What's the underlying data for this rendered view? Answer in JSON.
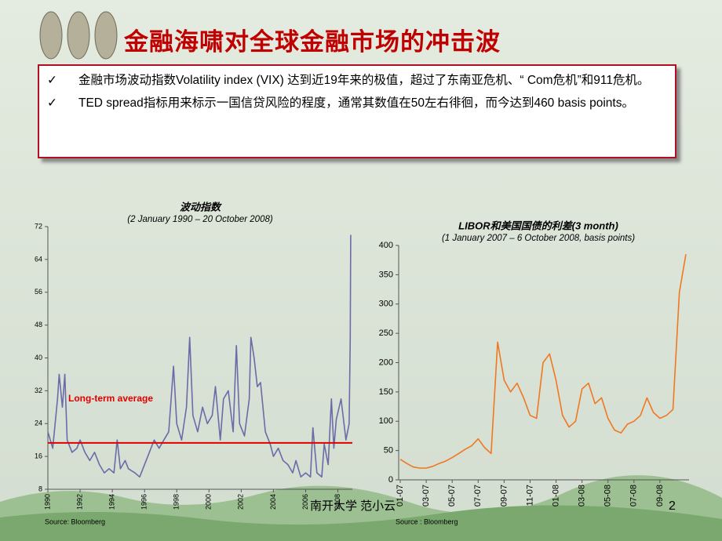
{
  "slide": {
    "title": "金融海啸对全球金融市场的冲击波",
    "bullets": [
      "金融市场波动指数Volatility index (VIX) 达到近19年来的极值，超过了东南亚危机、“ Com危机”和911危机。",
      "TED spread指标用来标示一国信贷风险的程度，通常其数值在50左右徘徊，而今达到460 basis points。"
    ],
    "footer": "南开大学 范小云",
    "page_number": "2"
  },
  "chart_data": [
    {
      "type": "line",
      "title": "波动指数",
      "subtitle": "(2 January 1990  – 20 October 2008)",
      "x": [
        1990.0,
        1990.3,
        1990.6,
        1990.7,
        1990.9,
        1991.05,
        1991.2,
        1991.5,
        1991.8,
        1992.0,
        1992.3,
        1992.6,
        1992.9,
        1993.2,
        1993.5,
        1993.8,
        1994.1,
        1994.3,
        1994.5,
        1994.8,
        1995.0,
        1995.4,
        1995.7,
        1996.0,
        1996.3,
        1996.6,
        1996.9,
        1997.2,
        1997.5,
        1997.8,
        1998.0,
        1998.3,
        1998.6,
        1998.8,
        1999.0,
        1999.3,
        1999.6,
        1999.9,
        2000.2,
        2000.4,
        2000.7,
        2000.9,
        2001.2,
        2001.5,
        2001.7,
        2001.9,
        2002.2,
        2002.5,
        2002.6,
        2002.8,
        2003.0,
        2003.2,
        2003.5,
        2003.8,
        2004.0,
        2004.3,
        2004.6,
        2004.9,
        2005.2,
        2005.4,
        2005.7,
        2006.0,
        2006.3,
        2006.45,
        2006.7,
        2007.0,
        2007.15,
        2007.4,
        2007.6,
        2007.75,
        2007.9,
        2008.2,
        2008.5,
        2008.7,
        2008.77,
        2008.8
      ],
      "values": [
        22,
        18,
        30,
        36,
        28,
        36,
        20,
        17,
        18,
        20,
        17,
        15,
        17,
        14,
        12,
        13,
        12,
        20,
        13,
        15,
        13,
        12,
        11,
        14,
        17,
        20,
        18,
        20,
        22,
        38,
        24,
        20,
        28,
        45,
        26,
        22,
        28,
        24,
        26,
        33,
        20,
        30,
        32,
        22,
        43,
        24,
        21,
        30,
        45,
        40,
        33,
        34,
        22,
        19,
        16,
        18,
        15,
        14,
        12,
        15,
        11,
        12,
        11,
        23,
        12,
        11,
        19,
        14,
        30,
        18,
        25,
        30,
        20,
        24,
        45,
        70
      ],
      "color": "#6b6ba8",
      "xlim": [
        1990,
        2008.9
      ],
      "xticks": [
        1990,
        1992,
        1994,
        1996,
        1998,
        2000,
        2002,
        2004,
        2006,
        2008
      ],
      "ylim": [
        8,
        72
      ],
      "yticks": [
        8,
        16,
        24,
        32,
        40,
        48,
        56,
        64,
        72
      ],
      "reference_line": {
        "value": 19.3,
        "label": "Long-term average",
        "color": "#e00000"
      },
      "source": "Source: Bloomberg"
    },
    {
      "type": "line",
      "title": "LIBOR和美国国债的利差(3 month)",
      "subtitle": "(1 January 2007  – 6 October 2008, basis points)",
      "categories": [
        "01-07",
        null,
        null,
        null,
        "03-07",
        null,
        null,
        null,
        "05-07",
        null,
        null,
        null,
        "07-07",
        null,
        null,
        null,
        "09-07",
        null,
        null,
        null,
        "11-07",
        null,
        null,
        null,
        "01-08",
        null,
        null,
        null,
        "03-08",
        null,
        null,
        null,
        "05-08",
        null,
        null,
        null,
        "07-08",
        null,
        null,
        null,
        "09-08",
        null,
        null,
        null,
        null
      ],
      "values": [
        35,
        28,
        22,
        20,
        20,
        23,
        28,
        32,
        38,
        45,
        52,
        58,
        70,
        55,
        45,
        235,
        170,
        150,
        165,
        140,
        110,
        105,
        200,
        215,
        170,
        110,
        90,
        100,
        155,
        165,
        130,
        140,
        105,
        85,
        80,
        95,
        100,
        110,
        140,
        115,
        105,
        110,
        120,
        320,
        385
      ],
      "color": "#f07820",
      "ylim": [
        0,
        400
      ],
      "yticks": [
        0,
        50,
        100,
        150,
        200,
        250,
        300,
        350,
        400
      ],
      "source": "Source : Bloomberg"
    }
  ]
}
